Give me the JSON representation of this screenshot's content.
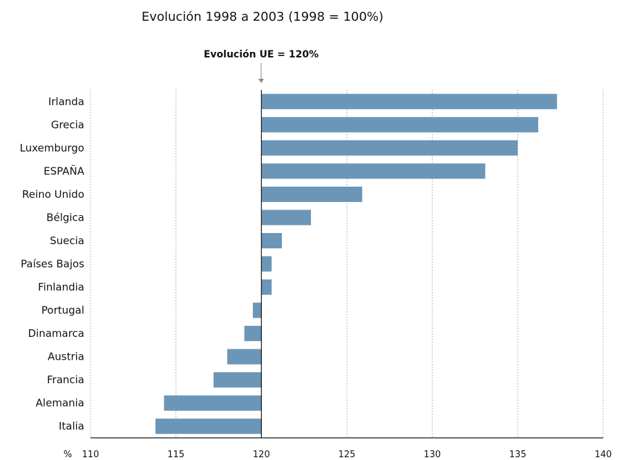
{
  "chart_data": {
    "type": "bar",
    "orientation": "horizontal",
    "title": "Evolución 1998 a 2003 (1998 = 100%)",
    "reference": {
      "label": "Evolución UE = 120%",
      "value": 120
    },
    "categories": [
      "Irlanda",
      "Grecia",
      "Luxemburgo",
      "ESPAÑA",
      "Reino Unido",
      "Bélgica",
      "Suecia",
      "Países Bajos",
      "Finlandia",
      "Portugal",
      "Dinamarca",
      "Austria",
      "Francia",
      "Alemania",
      "Italia"
    ],
    "values": [
      137.3,
      136.2,
      135.0,
      133.1,
      125.9,
      122.9,
      121.2,
      120.6,
      120.6,
      119.5,
      119.0,
      118.0,
      117.2,
      114.3,
      113.8
    ],
    "baseline": 120,
    "xlim": [
      110,
      140
    ],
    "xticks": [
      110,
      115,
      120,
      125,
      130,
      135,
      140
    ],
    "xunit": "%",
    "grid": "vertical-dotted",
    "bar_color": "#6b96b8"
  }
}
